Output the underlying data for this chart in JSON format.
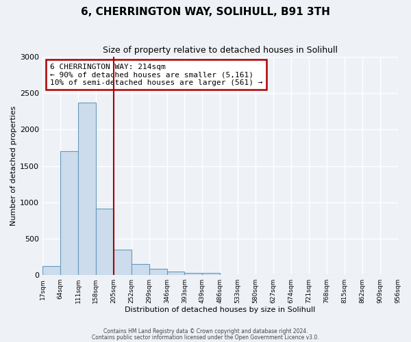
{
  "title": "6, CHERRINGTON WAY, SOLIHULL, B91 3TH",
  "subtitle": "Size of property relative to detached houses in Solihull",
  "xlabel": "Distribution of detached houses by size in Solihull",
  "ylabel": "Number of detached properties",
  "bar_values": [
    120,
    1700,
    2370,
    910,
    350,
    155,
    85,
    50,
    30,
    25,
    0,
    0,
    0,
    0,
    0,
    0,
    0,
    0,
    0,
    0
  ],
  "bin_labels": [
    "17sqm",
    "64sqm",
    "111sqm",
    "158sqm",
    "205sqm",
    "252sqm",
    "299sqm",
    "346sqm",
    "393sqm",
    "439sqm",
    "486sqm",
    "533sqm",
    "580sqm",
    "627sqm",
    "674sqm",
    "721sqm",
    "768sqm",
    "815sqm",
    "862sqm",
    "909sqm",
    "956sqm"
  ],
  "bar_color": "#ccdcec",
  "bar_edge_color": "#6699bb",
  "vline_x_bar_index": 4,
  "vline_color": "#aa0000",
  "annotation_title": "6 CHERRINGTON WAY: 214sqm",
  "annotation_line1": "← 90% of detached houses are smaller (5,161)",
  "annotation_line2": "10% of semi-detached houses are larger (561) →",
  "annotation_box_edgecolor": "#aa0000",
  "ylim": [
    0,
    3000
  ],
  "yticks": [
    0,
    500,
    1000,
    1500,
    2000,
    2500,
    3000
  ],
  "footer1": "Contains HM Land Registry data © Crown copyright and database right 2024.",
  "footer2": "Contains public sector information licensed under the Open Government Licence v3.0.",
  "background_color": "#eef2f7",
  "grid_color": "#ffffff",
  "title_fontsize": 11,
  "subtitle_fontsize": 9,
  "xlabel_fontsize": 8,
  "ylabel_fontsize": 8,
  "xtick_fontsize": 6.5,
  "ytick_fontsize": 8,
  "annotation_fontsize": 8
}
